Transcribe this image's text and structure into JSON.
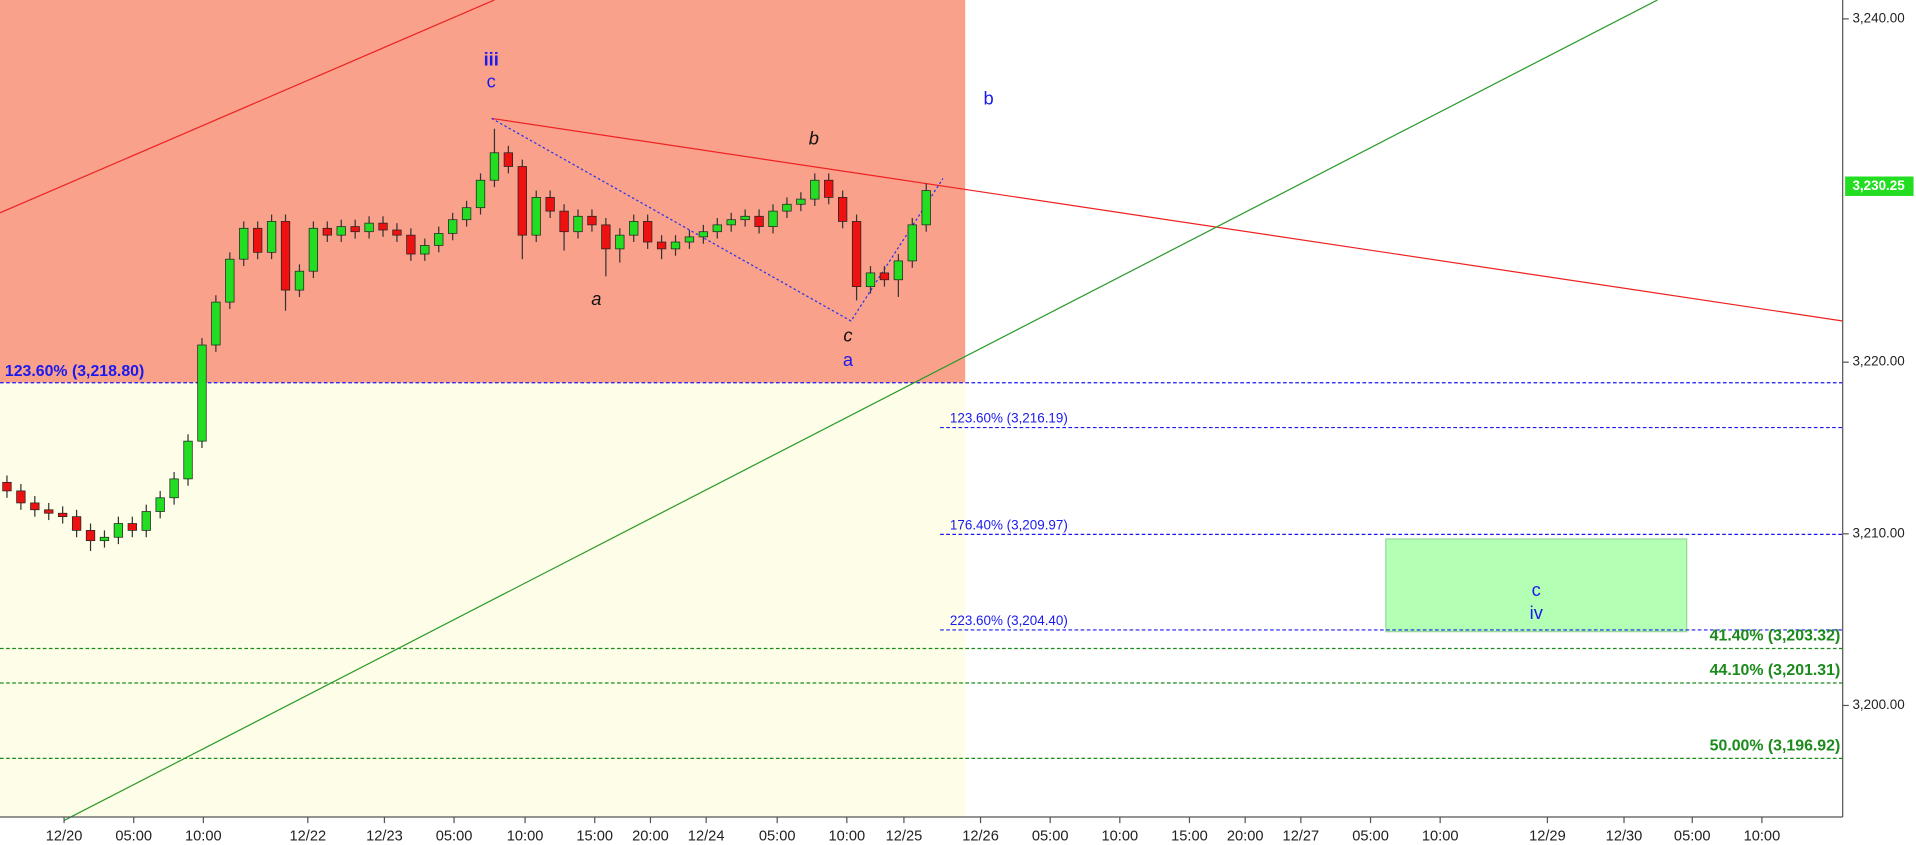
{
  "chart_data": {
    "type": "candlestick",
    "xlim": [
      0,
      132.3
    ],
    "ylim": [
      3193.5,
      3241.1
    ],
    "xticks": [
      {
        "value": 4.6,
        "label": "12/20"
      },
      {
        "value": 9.6,
        "label": "05:00"
      },
      {
        "value": 14.6,
        "label": "10:00"
      },
      {
        "value": 22.1,
        "label": "12/22"
      },
      {
        "value": 27.6,
        "label": "12/23"
      },
      {
        "value": 32.6,
        "label": "05:00"
      },
      {
        "value": 37.7,
        "label": "10:00"
      },
      {
        "value": 42.7,
        "label": "15:00"
      },
      {
        "value": 46.7,
        "label": "20:00"
      },
      {
        "value": 50.7,
        "label": "12/24"
      },
      {
        "value": 55.8,
        "label": "05:00"
      },
      {
        "value": 60.8,
        "label": "10:00"
      },
      {
        "value": 64.9,
        "label": "12/25"
      },
      {
        "value": 70.4,
        "label": "12/26"
      },
      {
        "value": 75.4,
        "label": "05:00"
      },
      {
        "value": 80.4,
        "label": "10:00"
      },
      {
        "value": 85.4,
        "label": "15:00"
      },
      {
        "value": 89.4,
        "label": "20:00"
      },
      {
        "value": 93.4,
        "label": "12/27"
      },
      {
        "value": 98.4,
        "label": "05:00"
      },
      {
        "value": 103.4,
        "label": "10:00"
      },
      {
        "value": 111.1,
        "label": "12/29"
      },
      {
        "value": 116.6,
        "label": "12/30"
      },
      {
        "value": 121.5,
        "label": "05:00"
      },
      {
        "value": 126.5,
        "label": "10:00"
      }
    ],
    "yticks": [
      {
        "value": 3200,
        "label": "3,200.00"
      },
      {
        "value": 3210,
        "label": "3,210.00"
      },
      {
        "value": 3220,
        "label": "3,220.00"
      },
      {
        "value": 3240,
        "label": "3,240.00"
      }
    ],
    "up_color": "#22dd22",
    "down_color": "#ee1111",
    "x": [
      0.5,
      1.5,
      2.5,
      3.5,
      4.5,
      5.5,
      6.5,
      7.5,
      8.5,
      9.5,
      10.5,
      11.5,
      12.5,
      13.5,
      14.5,
      15.5,
      16.5,
      17.5,
      18.5,
      19.5,
      20.5,
      21.5,
      22.5,
      23.5,
      24.5,
      25.5,
      26.5,
      27.5,
      28.5,
      29.5,
      30.5,
      31.5,
      32.5,
      33.5,
      34.5,
      35.5,
      36.5,
      37.5,
      38.5,
      39.5,
      40.5,
      41.5,
      42.5,
      43.5,
      44.5,
      45.5,
      46.5,
      47.5,
      48.5,
      49.5,
      50.5,
      51.5,
      52.5,
      53.5,
      54.5,
      55.5,
      56.5,
      57.5,
      58.5,
      59.5,
      60.5,
      61.5,
      62.5,
      63.5,
      64.5,
      65.5,
      66.5
    ],
    "open": [
      3213.0,
      3212.5,
      3211.8,
      3211.4,
      3211.2,
      3211.0,
      3210.2,
      3209.6,
      3209.8,
      3210.6,
      3210.2,
      3211.3,
      3212.1,
      3213.2,
      3215.4,
      3221.0,
      3223.5,
      3226.0,
      3227.8,
      3226.4,
      3228.2,
      3224.2,
      3225.3,
      3227.8,
      3227.4,
      3227.9,
      3227.6,
      3228.1,
      3227.7,
      3227.4,
      3226.3,
      3226.8,
      3227.5,
      3228.3,
      3229.0,
      3230.6,
      3232.2,
      3231.4,
      3227.4,
      3229.6,
      3228.8,
      3227.6,
      3228.5,
      3228.0,
      3226.6,
      3227.4,
      3228.2,
      3227.0,
      3226.6,
      3227.0,
      3227.3,
      3227.6,
      3228.0,
      3228.3,
      3228.5,
      3227.9,
      3228.8,
      3229.2,
      3229.5,
      3230.6,
      3229.6,
      3228.2,
      3224.4,
      3225.2,
      3224.8,
      3225.9,
      3228.0
    ],
    "high": [
      3213.4,
      3212.9,
      3212.2,
      3211.8,
      3211.6,
      3211.4,
      3210.6,
      3210.2,
      3211.0,
      3211.0,
      3211.7,
      3212.5,
      3213.6,
      3215.8,
      3221.4,
      3223.9,
      3226.4,
      3228.2,
      3228.2,
      3228.6,
      3228.6,
      3225.7,
      3228.2,
      3228.2,
      3228.3,
      3228.3,
      3228.5,
      3228.5,
      3228.1,
      3227.8,
      3227.2,
      3227.9,
      3228.7,
      3229.4,
      3231.0,
      3233.6,
      3232.6,
      3231.8,
      3230.0,
      3230.0,
      3229.2,
      3228.9,
      3228.9,
      3228.4,
      3227.8,
      3228.6,
      3228.6,
      3227.4,
      3227.4,
      3227.7,
      3228.0,
      3228.4,
      3228.7,
      3228.9,
      3228.9,
      3229.2,
      3229.6,
      3229.9,
      3231.0,
      3231.0,
      3230.0,
      3228.6,
      3225.6,
      3225.6,
      3226.3,
      3228.4,
      3230.4
    ],
    "low": [
      3212.1,
      3211.4,
      3211.0,
      3210.8,
      3210.6,
      3209.8,
      3209.0,
      3209.2,
      3209.4,
      3209.8,
      3209.8,
      3210.9,
      3211.7,
      3212.8,
      3215.0,
      3220.6,
      3223.1,
      3225.6,
      3226.0,
      3226.0,
      3223.0,
      3223.8,
      3224.9,
      3227.0,
      3227.0,
      3227.2,
      3227.2,
      3227.3,
      3227.0,
      3225.9,
      3225.9,
      3226.4,
      3227.1,
      3227.9,
      3228.6,
      3230.2,
      3231.0,
      3226.0,
      3227.0,
      3228.4,
      3226.5,
      3227.2,
      3227.6,
      3225.0,
      3225.8,
      3227.0,
      3226.6,
      3226.0,
      3226.2,
      3226.6,
      3226.9,
      3227.2,
      3227.6,
      3227.9,
      3227.5,
      3227.5,
      3228.4,
      3228.8,
      3229.1,
      3229.2,
      3227.8,
      3223.6,
      3224.0,
      3224.4,
      3223.8,
      3225.5,
      3227.6
    ],
    "close": [
      3212.5,
      3211.8,
      3211.4,
      3211.2,
      3211.0,
      3210.2,
      3209.6,
      3209.8,
      3210.6,
      3210.2,
      3211.3,
      3212.1,
      3213.2,
      3215.4,
      3221.0,
      3223.5,
      3226.0,
      3227.8,
      3226.4,
      3228.2,
      3224.2,
      3225.3,
      3227.8,
      3227.4,
      3227.9,
      3227.6,
      3228.1,
      3227.7,
      3227.4,
      3226.3,
      3226.8,
      3227.5,
      3228.3,
      3229.0,
      3230.6,
      3232.2,
      3231.4,
      3227.4,
      3229.6,
      3228.8,
      3227.6,
      3228.5,
      3228.0,
      3226.6,
      3227.4,
      3228.2,
      3227.0,
      3226.6,
      3227.0,
      3227.3,
      3227.6,
      3228.0,
      3228.3,
      3228.5,
      3227.9,
      3228.8,
      3229.2,
      3229.5,
      3230.6,
      3229.6,
      3228.2,
      3224.4,
      3225.2,
      3224.8,
      3225.9,
      3228.0,
      3230.0
    ],
    "zones": [
      {
        "x": [
          0,
          69.3
        ],
        "y": [
          3218.8,
          3241.1
        ],
        "color": "#f9a18b"
      },
      {
        "x": [
          0,
          69.3
        ],
        "y": [
          3193.5,
          3218.8
        ],
        "color": "#fefee8"
      }
    ],
    "levels": [
      {
        "value": 3218.8,
        "label": "123.60% (3,218.80)",
        "color": "#1a1aee",
        "from": 0
      },
      {
        "value": 3216.19,
        "label": "123.60% (3,216.19)",
        "color": "#1a1aee",
        "from": 67.5
      },
      {
        "value": 3209.97,
        "label": "176.40% (3,209.97)",
        "color": "#1a1aee",
        "from": 67.5
      },
      {
        "value": 3204.4,
        "label": "223.60% (3,204.40)",
        "color": "#1a1aee",
        "from": 67.5
      },
      {
        "value": 3203.32,
        "label": "41.40% (3,203.32)",
        "color": "#1a8a1a",
        "from": 0
      },
      {
        "value": 3201.31,
        "label": "44.10% (3,201.31)",
        "color": "#1a8a1a",
        "from": 0
      },
      {
        "value": 3196.92,
        "label": "50.00% (3,196.92)",
        "color": "#1a8a1a",
        "from": 0
      }
    ],
    "trendlines": [
      {
        "x": [
          0,
          35.5
        ],
        "y": [
          3228.7,
          3241.1
        ],
        "color": "#ee2222",
        "dash": false
      },
      {
        "x": [
          35.3,
          132.3
        ],
        "y": [
          3234.2,
          3222.4
        ],
        "color": "#ee2222",
        "dash": false
      },
      {
        "x": [
          4.6,
          119.0
        ],
        "y": [
          3193.3,
          3241.1
        ],
        "color": "#2a9a2a",
        "dash": false
      },
      {
        "x": [
          35.3,
          61.1,
          67.7
        ],
        "y": [
          3234.2,
          3222.4,
          3230.7
        ],
        "color": "#2233ee",
        "dash": true
      }
    ],
    "box": {
      "x": [
        99.5,
        121.1
      ],
      "y": [
        3204.3,
        3209.7
      ],
      "color": "#b3ffb3",
      "labels": [
        "c",
        "iv"
      ]
    },
    "wave_labels": [
      "iii",
      "c",
      "b",
      "a",
      "c",
      "a",
      "b"
    ],
    "last_price": {
      "value": 3230.25,
      "label": "3,230.25"
    }
  }
}
